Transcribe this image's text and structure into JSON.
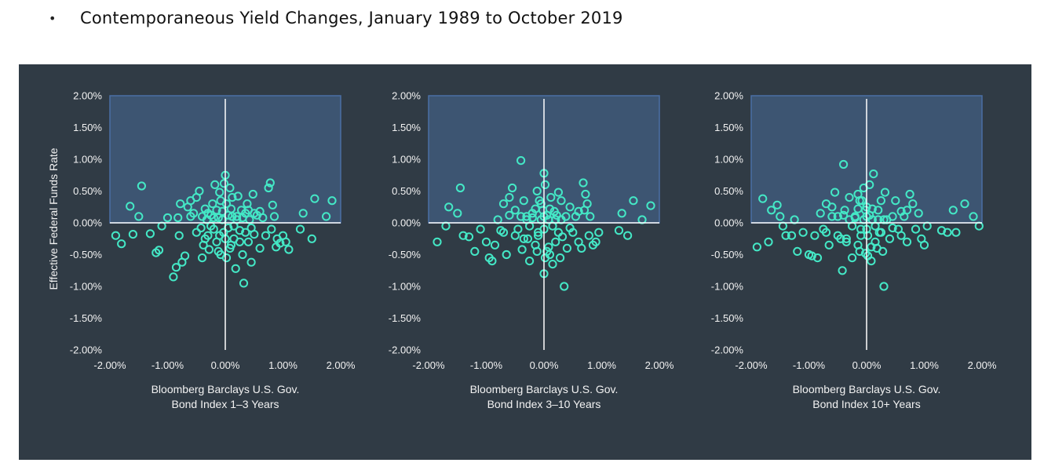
{
  "heading": {
    "bullet": "•",
    "text": "Contemporaneous Yield Changes, January 1989 to October 2019"
  },
  "colors": {
    "panel_bg": "#303b45",
    "quadrant_fill": "#3d5572",
    "quadrant_stroke": "#4a6fa5",
    "point": "#44e8c6",
    "axis_line": "#ffffff",
    "text": "#f2f2f2"
  },
  "chart_data": [
    {
      "type": "scatter",
      "xlabel": [
        "Bloomberg Barclays U.S. Gov.",
        "Bond Index 1–3 Years"
      ],
      "ylabel": "Effective Federal Funds Rate",
      "xlim": [
        -2,
        2
      ],
      "ylim": [
        -2,
        2
      ],
      "xticks": [
        "-2.00%",
        "-1.00%",
        "0.00%",
        "1.00%",
        "2.00%"
      ],
      "yticks": [
        "2.00%",
        "1.50%",
        "1.00%",
        "0.50%",
        "0.00%",
        "-0.50%",
        "-1.00%",
        "-1.50%",
        "-2.00%"
      ],
      "highlight_quadrant": "upper",
      "points": [
        [
          -1.9,
          -0.2
        ],
        [
          -1.8,
          -0.33
        ],
        [
          -1.6,
          -0.18
        ],
        [
          -1.65,
          0.26
        ],
        [
          -1.45,
          0.58
        ],
        [
          -1.5,
          0.1
        ],
        [
          -1.3,
          -0.17
        ],
        [
          -1.2,
          -0.47
        ],
        [
          -1.15,
          -0.43
        ],
        [
          -1.1,
          -0.05
        ],
        [
          -1.0,
          0.08
        ],
        [
          -0.9,
          -0.85
        ],
        [
          -0.85,
          -0.7
        ],
        [
          -0.8,
          -0.2
        ],
        [
          -0.75,
          -0.62
        ],
        [
          -0.7,
          -0.52
        ],
        [
          -0.82,
          0.08
        ],
        [
          -0.78,
          0.3
        ],
        [
          -0.65,
          0.25
        ],
        [
          -0.6,
          0.35
        ],
        [
          -0.55,
          0.15
        ],
        [
          -0.5,
          0.4
        ],
        [
          -0.45,
          0.5
        ],
        [
          -0.42,
          -0.08
        ],
        [
          -0.4,
          -0.55
        ],
        [
          -0.38,
          -0.35
        ],
        [
          -0.35,
          0.22
        ],
        [
          -0.32,
          0.05
        ],
        [
          -0.3,
          -0.2
        ],
        [
          -0.28,
          -0.42
        ],
        [
          -0.25,
          0.12
        ],
        [
          -0.22,
          0.3
        ],
        [
          -0.2,
          -0.1
        ],
        [
          -0.18,
          0.6
        ],
        [
          -0.15,
          -0.3
        ],
        [
          -0.12,
          0.08
        ],
        [
          -0.1,
          0.48
        ],
        [
          -0.08,
          -0.5
        ],
        [
          -0.05,
          0.18
        ],
        [
          -0.03,
          -0.15
        ],
        [
          0.0,
          0.75
        ],
        [
          0.02,
          0.3
        ],
        [
          0.05,
          -0.08
        ],
        [
          0.08,
          0.55
        ],
        [
          0.1,
          -0.35
        ],
        [
          0.12,
          0.1
        ],
        [
          0.15,
          -0.25
        ],
        [
          0.18,
          -0.72
        ],
        [
          0.2,
          0.05
        ],
        [
          0.22,
          0.42
        ],
        [
          0.25,
          -0.12
        ],
        [
          0.28,
          0.2
        ],
        [
          0.3,
          -0.5
        ],
        [
          0.32,
          -0.95
        ],
        [
          0.35,
          0.15
        ],
        [
          0.38,
          0.3
        ],
        [
          0.4,
          -0.3
        ],
        [
          0.42,
          0.05
        ],
        [
          0.45,
          -0.62
        ],
        [
          0.48,
          0.45
        ],
        [
          0.5,
          -0.18
        ],
        [
          0.55,
          0.12
        ],
        [
          0.6,
          -0.4
        ],
        [
          0.65,
          0.08
        ],
        [
          0.7,
          -0.2
        ],
        [
          0.75,
          0.55
        ],
        [
          0.78,
          0.63
        ],
        [
          0.8,
          -0.1
        ],
        [
          0.82,
          0.28
        ],
        [
          0.85,
          0.1
        ],
        [
          0.88,
          -0.38
        ],
        [
          0.9,
          -0.25
        ],
        [
          0.95,
          -0.32
        ],
        [
          1.0,
          -0.2
        ],
        [
          1.05,
          -0.3
        ],
        [
          1.1,
          -0.42
        ],
        [
          1.3,
          -0.1
        ],
        [
          1.35,
          0.15
        ],
        [
          1.5,
          -0.25
        ],
        [
          1.55,
          0.38
        ],
        [
          1.75,
          0.1
        ],
        [
          1.85,
          0.35
        ],
        [
          -0.3,
          0.15
        ],
        [
          -0.25,
          -0.05
        ],
        [
          -0.2,
          0.08
        ],
        [
          -0.15,
          0.2
        ],
        [
          -0.1,
          -0.2
        ],
        [
          -0.05,
          0.05
        ],
        [
          0.0,
          -0.25
        ],
        [
          0.05,
          0.12
        ],
        [
          0.1,
          0.22
        ],
        [
          0.15,
          -0.05
        ],
        [
          0.2,
          0.1
        ],
        [
          0.25,
          -0.3
        ],
        [
          0.3,
          0.08
        ],
        [
          0.35,
          -0.15
        ],
        [
          0.4,
          0.2
        ],
        [
          -0.4,
          0.1
        ],
        [
          -0.35,
          -0.25
        ],
        [
          0.45,
          -0.08
        ],
        [
          0.5,
          0.15
        ],
        [
          -0.5,
          -0.15
        ],
        [
          0.6,
          0.18
        ],
        [
          -0.6,
          0.1
        ],
        [
          -0.08,
          0.35
        ],
        [
          0.08,
          -0.4
        ],
        [
          0.12,
          0.4
        ],
        [
          -0.12,
          -0.45
        ],
        [
          0.02,
          -0.55
        ],
        [
          -0.02,
          0.62
        ]
      ]
    },
    {
      "type": "scatter",
      "xlabel": [
        "Bloomberg Barclays U.S. Gov.",
        "Bond Index 3–10 Years"
      ],
      "ylabel": "",
      "xlim": [
        -2,
        2
      ],
      "ylim": [
        -2,
        2
      ],
      "xticks": [
        "-2.00%",
        "-1.00%",
        "0.00%",
        "1.00%",
        "2.00%"
      ],
      "yticks": [
        "2.00%",
        "1.50%",
        "1.00%",
        "0.50%",
        "0.00%",
        "-0.50%",
        "-1.00%",
        "-1.50%",
        "-2.00%"
      ],
      "highlight_quadrant": "upper",
      "points": [
        [
          -1.85,
          -0.3
        ],
        [
          -1.7,
          -0.05
        ],
        [
          -1.65,
          0.25
        ],
        [
          -1.5,
          0.15
        ],
        [
          -1.45,
          0.55
        ],
        [
          -1.4,
          -0.2
        ],
        [
          -1.3,
          -0.22
        ],
        [
          -1.2,
          -0.45
        ],
        [
          -1.1,
          -0.1
        ],
        [
          -1.0,
          -0.3
        ],
        [
          -0.95,
          -0.55
        ],
        [
          -0.9,
          -0.6
        ],
        [
          -0.85,
          -0.35
        ],
        [
          -0.8,
          0.05
        ],
        [
          -0.75,
          -0.12
        ],
        [
          -0.7,
          0.3
        ],
        [
          -0.65,
          -0.5
        ],
        [
          -0.6,
          0.4
        ],
        [
          -0.55,
          0.55
        ],
        [
          -0.5,
          0.2
        ],
        [
          -0.45,
          -0.1
        ],
        [
          -0.4,
          0.98
        ],
        [
          -0.38,
          -0.42
        ],
        [
          -0.35,
          0.35
        ],
        [
          -0.3,
          0.1
        ],
        [
          -0.28,
          -0.25
        ],
        [
          -0.25,
          -0.6
        ],
        [
          -0.2,
          0.15
        ],
        [
          -0.15,
          -0.35
        ],
        [
          -0.12,
          0.5
        ],
        [
          -0.1,
          -0.15
        ],
        [
          -0.05,
          0.3
        ],
        [
          0.0,
          0.78
        ],
        [
          0.0,
          -0.8
        ],
        [
          0.02,
          0.6
        ],
        [
          0.05,
          -0.45
        ],
        [
          0.08,
          0.05
        ],
        [
          0.1,
          -0.5
        ],
        [
          0.12,
          0.4
        ],
        [
          0.15,
          -0.65
        ],
        [
          0.18,
          0.18
        ],
        [
          0.2,
          -0.3
        ],
        [
          0.22,
          0.12
        ],
        [
          0.25,
          0.48
        ],
        [
          0.28,
          -0.55
        ],
        [
          0.3,
          0.35
        ],
        [
          0.32,
          -0.22
        ],
        [
          0.35,
          -1.0
        ],
        [
          0.38,
          0.1
        ],
        [
          0.4,
          -0.4
        ],
        [
          0.45,
          0.25
        ],
        [
          0.5,
          -0.15
        ],
        [
          0.55,
          0.1
        ],
        [
          0.6,
          -0.3
        ],
        [
          0.65,
          -0.4
        ],
        [
          0.68,
          0.63
        ],
        [
          0.72,
          0.45
        ],
        [
          0.75,
          0.3
        ],
        [
          0.78,
          -0.2
        ],
        [
          0.8,
          0.1
        ],
        [
          0.85,
          -0.35
        ],
        [
          0.9,
          -0.3
        ],
        [
          0.95,
          -0.15
        ],
        [
          1.3,
          -0.12
        ],
        [
          1.35,
          0.15
        ],
        [
          1.45,
          -0.2
        ],
        [
          1.55,
          0.35
        ],
        [
          1.7,
          0.05
        ],
        [
          1.85,
          0.27
        ],
        [
          -0.3,
          0.05
        ],
        [
          -0.25,
          -0.05
        ],
        [
          -0.2,
          0.08
        ],
        [
          -0.15,
          0.22
        ],
        [
          -0.1,
          -0.2
        ],
        [
          -0.05,
          0.05
        ],
        [
          0.05,
          0.12
        ],
        [
          0.1,
          0.22
        ],
        [
          0.15,
          -0.05
        ],
        [
          0.2,
          0.05
        ],
        [
          0.25,
          -0.15
        ],
        [
          0.3,
          0.05
        ],
        [
          -0.4,
          0.1
        ],
        [
          -0.35,
          -0.25
        ],
        [
          0.45,
          -0.08
        ],
        [
          -0.5,
          -0.2
        ],
        [
          0.6,
          0.18
        ],
        [
          -0.6,
          0.12
        ],
        [
          -0.08,
          0.35
        ],
        [
          0.08,
          -0.38
        ],
        [
          -0.12,
          -0.45
        ],
        [
          0.02,
          -0.55
        ],
        [
          -0.02,
          0.2
        ],
        [
          0.0,
          -0.1
        ],
        [
          0.0,
          0.1
        ],
        [
          -0.7,
          -0.15
        ],
        [
          0.7,
          0.2
        ]
      ]
    },
    {
      "type": "scatter",
      "xlabel": [
        "Bloomberg Barclays U.S. Gov.",
        "Bond Index 10+ Years"
      ],
      "ylabel": "",
      "xlim": [
        -2,
        2
      ],
      "ylim": [
        -2,
        2
      ],
      "xticks": [
        "-2.00%",
        "-1.00%",
        "0.00%",
        "1.00%",
        "2.00%"
      ],
      "yticks": [
        "2.00%",
        "1.50%",
        "1.00%",
        "0.50%",
        "0.00%",
        "-0.50%",
        "-1.00%",
        "-1.50%",
        "-2.00%"
      ],
      "highlight_quadrant": "upper",
      "points": [
        [
          -1.9,
          -0.38
        ],
        [
          -1.8,
          0.38
        ],
        [
          -1.7,
          -0.3
        ],
        [
          -1.65,
          0.2
        ],
        [
          -1.55,
          0.28
        ],
        [
          -1.5,
          0.1
        ],
        [
          -1.45,
          -0.05
        ],
        [
          -1.4,
          -0.2
        ],
        [
          -1.3,
          -0.2
        ],
        [
          -1.25,
          0.05
        ],
        [
          -1.2,
          -0.45
        ],
        [
          -1.1,
          -0.15
        ],
        [
          -1.0,
          -0.5
        ],
        [
          -0.95,
          -0.52
        ],
        [
          -0.9,
          -0.2
        ],
        [
          -0.85,
          -0.55
        ],
        [
          -0.8,
          0.15
        ],
        [
          -0.75,
          -0.1
        ],
        [
          -0.7,
          0.3
        ],
        [
          -0.65,
          -0.35
        ],
        [
          -0.6,
          0.25
        ],
        [
          -0.55,
          0.48
        ],
        [
          -0.5,
          0.1
        ],
        [
          -0.45,
          -0.25
        ],
        [
          -0.42,
          -0.75
        ],
        [
          -0.4,
          0.92
        ],
        [
          -0.38,
          0.2
        ],
        [
          -0.35,
          -0.3
        ],
        [
          -0.3,
          0.4
        ],
        [
          -0.25,
          -0.55
        ],
        [
          -0.2,
          0.1
        ],
        [
          -0.15,
          -0.35
        ],
        [
          -0.12,
          0.35
        ],
        [
          -0.1,
          -0.1
        ],
        [
          -0.05,
          0.55
        ],
        [
          -0.02,
          -0.48
        ],
        [
          0.0,
          0.25
        ],
        [
          0.02,
          -0.2
        ],
        [
          0.05,
          0.6
        ],
        [
          0.08,
          -0.6
        ],
        [
          0.1,
          0.05
        ],
        [
          0.12,
          0.77
        ],
        [
          0.15,
          -0.3
        ],
        [
          0.2,
          0.2
        ],
        [
          0.22,
          -0.15
        ],
        [
          0.25,
          0.35
        ],
        [
          0.28,
          -0.45
        ],
        [
          0.3,
          -1.0
        ],
        [
          0.32,
          0.48
        ],
        [
          0.35,
          0.05
        ],
        [
          0.4,
          -0.25
        ],
        [
          0.45,
          0.1
        ],
        [
          0.5,
          0.35
        ],
        [
          0.55,
          -0.1
        ],
        [
          0.6,
          -0.2
        ],
        [
          0.65,
          0.1
        ],
        [
          0.7,
          -0.3
        ],
        [
          0.75,
          0.45
        ],
        [
          0.8,
          0.3
        ],
        [
          0.85,
          -0.1
        ],
        [
          0.9,
          0.15
        ],
        [
          0.95,
          -0.25
        ],
        [
          1.0,
          -0.35
        ],
        [
          1.05,
          -0.05
        ],
        [
          1.3,
          -0.12
        ],
        [
          1.4,
          -0.15
        ],
        [
          1.5,
          0.2
        ],
        [
          1.55,
          -0.15
        ],
        [
          1.7,
          0.3
        ],
        [
          1.85,
          0.1
        ],
        [
          1.95,
          -0.05
        ],
        [
          -0.3,
          0.05
        ],
        [
          -0.25,
          -0.05
        ],
        [
          -0.2,
          0.08
        ],
        [
          -0.15,
          0.22
        ],
        [
          -0.1,
          -0.2
        ],
        [
          -0.05,
          0.05
        ],
        [
          0.05,
          0.12
        ],
        [
          0.1,
          0.22
        ],
        [
          0.15,
          -0.05
        ],
        [
          0.2,
          0.05
        ],
        [
          0.25,
          -0.15
        ],
        [
          0.3,
          0.05
        ],
        [
          -0.4,
          0.12
        ],
        [
          -0.35,
          -0.25
        ],
        [
          0.45,
          -0.08
        ],
        [
          -0.5,
          -0.2
        ],
        [
          0.6,
          0.18
        ],
        [
          -0.6,
          0.1
        ],
        [
          -0.08,
          0.35
        ],
        [
          0.08,
          -0.38
        ],
        [
          -0.12,
          -0.45
        ],
        [
          0.02,
          -0.52
        ],
        [
          -0.02,
          0.2
        ],
        [
          0.0,
          -0.1
        ],
        [
          0.0,
          0.1
        ],
        [
          -0.7,
          -0.15
        ],
        [
          0.7,
          0.2
        ],
        [
          -0.15,
          0.45
        ],
        [
          0.18,
          -0.4
        ]
      ]
    }
  ]
}
